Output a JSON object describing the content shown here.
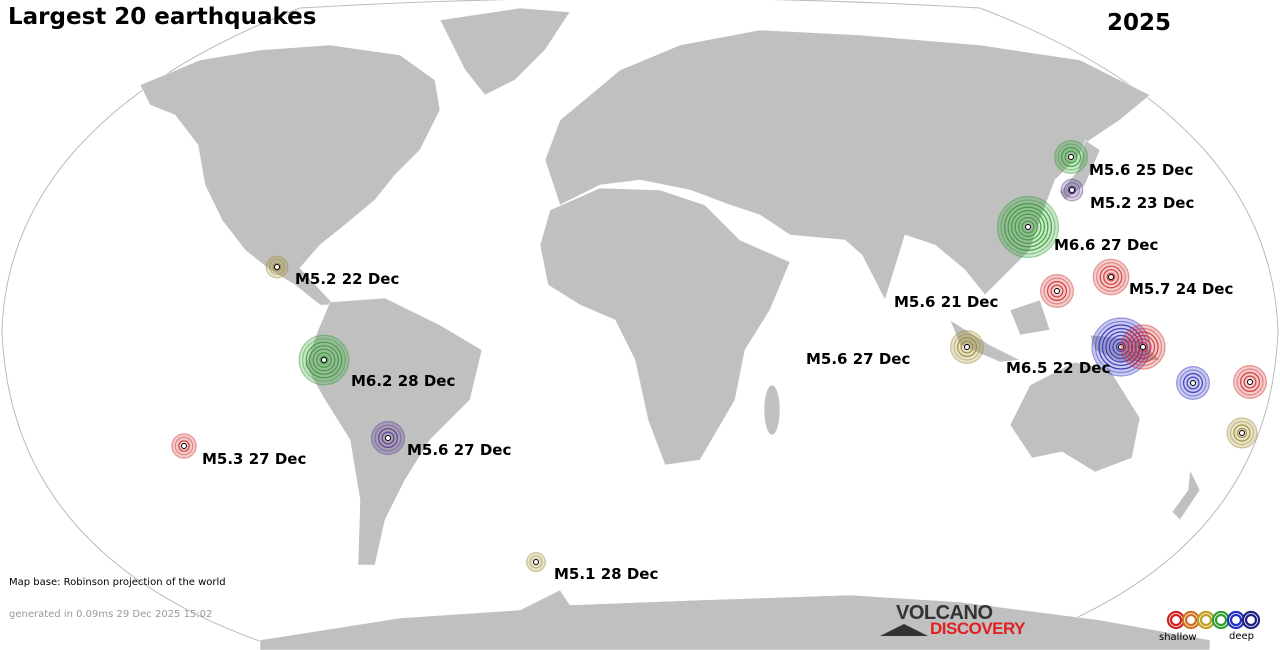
{
  "title": "Largest 20 earthquakes",
  "year": "2025",
  "map_base": "Map base: Robinson projection of the world",
  "generated": "generated in 0.09ms 29 Dec 2025 15:02",
  "logo": {
    "line1": "VOLCANO",
    "line2": "DISCOVERY"
  },
  "legend": {
    "shallow": "shallow",
    "deep": "deep",
    "colors": [
      "#d02020",
      "#d07020",
      "#c0a020",
      "#30a030",
      "#2030c0",
      "#202080"
    ]
  },
  "depth_colors": {
    "shallow": "#d03030",
    "shallow-mid": "#a08a30",
    "mid": "#30a030",
    "deep": "#3030c0",
    "deeper": "#5a3a90"
  },
  "labels": [
    "M5.6 25 Dec",
    "M5.2 23 Dec",
    "M6.6 27 Dec",
    "M5.7 24 Dec",
    "M5.6 21 Dec",
    "M5.6 27 Dec",
    "M6.5 22 Dec",
    "M5.2 22 Dec",
    "M6.2 28 Dec",
    "M5.3 27 Dec",
    "M5.6 27 Dec",
    "M5.1 28 Dec"
  ],
  "markers": [
    {
      "depth": "mid",
      "mag": 5.6
    },
    {
      "depth": "deeper",
      "mag": 5.2
    },
    {
      "depth": "mid",
      "mag": 6.6
    },
    {
      "depth": "shallow",
      "mag": 5.7
    },
    {
      "depth": "shallow",
      "mag": 5.6
    },
    {
      "depth": "shallow-mid",
      "mag": 5.6
    },
    {
      "depth": "deep",
      "mag": 6.5
    },
    {
      "depth": "shallow",
      "mag": 6.0
    },
    {
      "depth": "deep",
      "mag": 5.6
    },
    {
      "depth": "shallow",
      "mag": 5.6
    },
    {
      "depth": "shallow-mid",
      "mag": 5.5
    },
    {
      "depth": "shallow-mid",
      "mag": 5.2
    },
    {
      "depth": "mid",
      "mag": 6.2
    },
    {
      "depth": "shallow",
      "mag": 5.3
    },
    {
      "depth": "deeper",
      "mag": 5.6
    },
    {
      "depth": "shallow-mid",
      "mag": 5.1
    }
  ]
}
